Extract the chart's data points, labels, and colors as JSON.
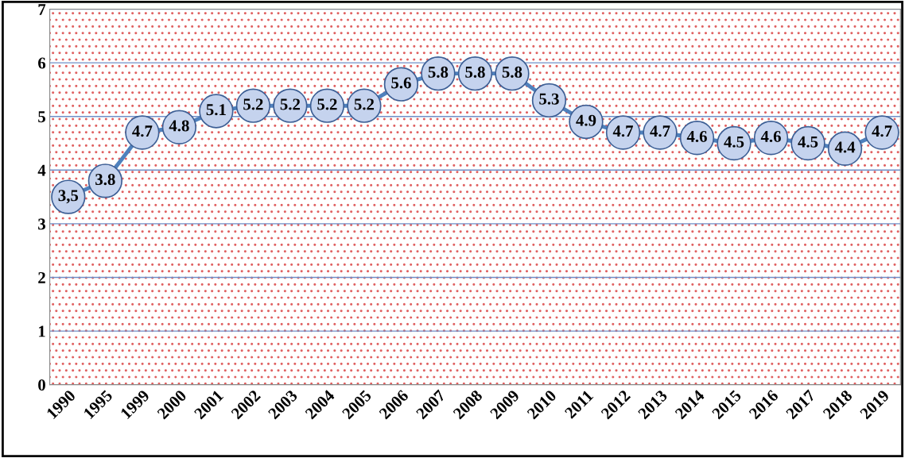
{
  "chart_data": {
    "type": "line",
    "categories": [
      "1990",
      "1995",
      "1999",
      "2000",
      "2001",
      "2002",
      "2003",
      "2004",
      "2005",
      "2006",
      "2007",
      "2008",
      "2009",
      "2010",
      "2011",
      "2012",
      "2013",
      "2014",
      "2015",
      "2016",
      "2017",
      "2018",
      "2019"
    ],
    "series": [
      {
        "color": "#4f81bd",
        "values": [
          3.5,
          3.8,
          4.7,
          4.8,
          5.1,
          5.2,
          5.2,
          5.2,
          5.2,
          5.6,
          5.8,
          5.8,
          5.8,
          5.3,
          4.9,
          4.7,
          4.7,
          4.6,
          4.5,
          4.6,
          4.5,
          4.4,
          4.7
        ],
        "value_labels": [
          "3,5",
          "3.8",
          "4.7",
          "4.8",
          "5.1",
          "5.2",
          "5.2",
          "5.2",
          "5.2",
          "5.6",
          "5.8",
          "5.8",
          "5.8",
          "5.3",
          "4.9",
          "4.7",
          "4.7",
          "4.6",
          "4.5",
          "4.6",
          "4.5",
          "4.4",
          "4.7"
        ]
      }
    ],
    "ylim": [
      0,
      7
    ],
    "yticks": [
      0,
      1,
      2,
      3,
      4,
      5,
      6,
      7
    ],
    "grid": "y",
    "marker": "circle",
    "line_style": "solid"
  }
}
